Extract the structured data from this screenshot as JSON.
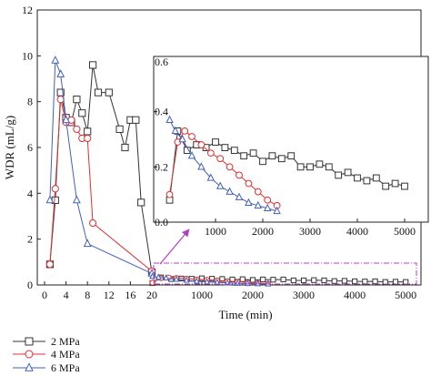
{
  "chart_data": {
    "type": "line",
    "ylabel": "WDR (mL/g)",
    "xlabel": "Time (min)",
    "ylim": [
      0,
      12
    ],
    "y_ticks": [
      "0",
      "2",
      "4",
      "6",
      "8",
      "10",
      "12"
    ],
    "x_segments": [
      {
        "range": [
          0,
          20
        ],
        "ticks": [
          "0",
          "4",
          "8",
          "12",
          "16",
          "20"
        ]
      },
      {
        "range": [
          20,
          5300
        ],
        "ticks": [
          "1000",
          "2000",
          "3000",
          "4000",
          "5000"
        ]
      }
    ],
    "colors": {
      "2 MPa": "#333333",
      "4 MPa": "#e03030",
      "6 MPa": "#4060c0",
      "highlight": "#b040c0"
    },
    "series": [
      {
        "name": "2 MPa",
        "marker": "square",
        "x": [
          1,
          2,
          3,
          4,
          5,
          6,
          7,
          8,
          9,
          10,
          12,
          14,
          15,
          16,
          17,
          18,
          20
        ],
        "y": [
          0.9,
          3.7,
          8.4,
          7.3,
          7.1,
          8.1,
          7.5,
          6.7,
          9.6,
          8.4,
          8.4,
          6.8,
          6.0,
          7.2,
          7.2,
          3.6,
          0.55
        ]
      },
      {
        "name": "4 MPa",
        "marker": "circle",
        "x": [
          1,
          2,
          3,
          4,
          5,
          6,
          7,
          8,
          9,
          20
        ],
        "y": [
          0.9,
          4.2,
          8.1,
          7.1,
          7.2,
          6.8,
          6.4,
          6.4,
          2.7,
          0.6
        ]
      },
      {
        "name": "6 MPa",
        "marker": "triangle",
        "x": [
          1,
          2,
          3,
          4,
          6,
          8,
          20
        ],
        "y": [
          3.7,
          9.8,
          9.2,
          7.2,
          3.7,
          1.8,
          0.5
        ]
      }
    ],
    "long_term": {
      "2 MPa": {
        "x": [
          30,
          200,
          400,
          600,
          800,
          1000,
          1200,
          1400,
          1600,
          1800,
          2000,
          2200,
          2400,
          2600,
          2800,
          3000,
          3200,
          3400,
          3600,
          3800,
          4000,
          4200,
          4400,
          4600,
          4800,
          5000
        ],
        "y": [
          0.08,
          0.33,
          0.26,
          0.28,
          0.27,
          0.29,
          0.27,
          0.26,
          0.24,
          0.25,
          0.22,
          0.24,
          0.23,
          0.24,
          0.2,
          0.2,
          0.21,
          0.2,
          0.17,
          0.18,
          0.16,
          0.15,
          0.16,
          0.13,
          0.14,
          0.13
        ]
      },
      "4 MPa": {
        "x": [
          30,
          200,
          350,
          500,
          700,
          900,
          1100,
          1300,
          1500,
          1700,
          1900,
          2100,
          2300
        ],
        "y": [
          0.1,
          0.29,
          0.33,
          0.31,
          0.28,
          0.25,
          0.23,
          0.2,
          0.17,
          0.14,
          0.11,
          0.08,
          0.06
        ]
      },
      "6 MPa": {
        "x": [
          30,
          150,
          300,
          500,
          700,
          900,
          1100,
          1300,
          1500,
          1700,
          1900,
          2100,
          2300
        ],
        "y": [
          0.37,
          0.33,
          0.3,
          0.24,
          0.2,
          0.16,
          0.13,
          0.11,
          0.09,
          0.07,
          0.06,
          0.05,
          0.04
        ]
      }
    },
    "inset": {
      "xlim": [
        0,
        5500
      ],
      "ylim": [
        0,
        0.6
      ],
      "x_ticks": [
        "1000",
        "2000",
        "3000",
        "4000",
        "5000"
      ],
      "y_ticks": [
        "0.0",
        "0.2",
        "0.4",
        "0.6"
      ]
    },
    "legend": {
      "position": "bottom-left",
      "entries": [
        "2 MPa",
        "4 MPa",
        "6 MPa"
      ]
    }
  }
}
